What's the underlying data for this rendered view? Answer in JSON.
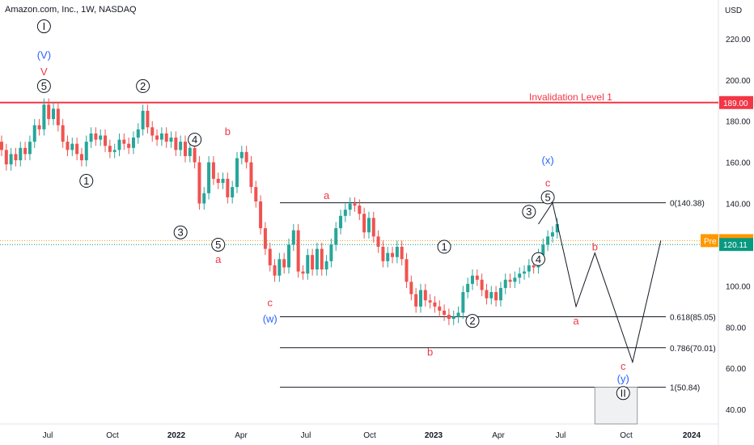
{
  "header": {
    "title": "Amazon.com, Inc., 1W, NASDAQ",
    "currency": "USD"
  },
  "chart_data": {
    "type": "candlestick",
    "title": "Amazon.com, Inc., 1W, NASDAQ",
    "ylabel": "USD",
    "ylim": [
      33,
      238
    ],
    "yticks": [
      "220.00",
      "200.00",
      "180.00",
      "160.00",
      "140.00",
      "120.00",
      "100.00",
      "80.00",
      "60.00",
      "40.00"
    ],
    "xticks": [
      "Jul",
      "Oct",
      "2022",
      "Apr",
      "Jul",
      "Oct",
      "2023",
      "Apr",
      "Jul",
      "Oct",
      "2024"
    ],
    "candles": [
      {
        "o": 170,
        "c": 166
      },
      {
        "o": 166,
        "c": 159
      },
      {
        "o": 159,
        "c": 164
      },
      {
        "o": 164,
        "c": 161
      },
      {
        "o": 161,
        "c": 167
      },
      {
        "o": 167,
        "c": 164
      },
      {
        "o": 164,
        "c": 170
      },
      {
        "o": 170,
        "c": 178
      },
      {
        "o": 178,
        "c": 176
      },
      {
        "o": 176,
        "c": 188
      },
      {
        "o": 188,
        "c": 181
      },
      {
        "o": 181,
        "c": 186
      },
      {
        "o": 186,
        "c": 178
      },
      {
        "o": 178,
        "c": 170
      },
      {
        "o": 170,
        "c": 166
      },
      {
        "o": 166,
        "c": 169
      },
      {
        "o": 169,
        "c": 164
      },
      {
        "o": 164,
        "c": 161
      },
      {
        "o": 161,
        "c": 170
      },
      {
        "o": 170,
        "c": 174
      },
      {
        "o": 174,
        "c": 171
      },
      {
        "o": 171,
        "c": 173
      },
      {
        "o": 173,
        "c": 168
      },
      {
        "o": 168,
        "c": 165
      },
      {
        "o": 165,
        "c": 166
      },
      {
        "o": 166,
        "c": 171
      },
      {
        "o": 171,
        "c": 169
      },
      {
        "o": 169,
        "c": 167
      },
      {
        "o": 167,
        "c": 172
      },
      {
        "o": 172,
        "c": 176
      },
      {
        "o": 176,
        "c": 185
      },
      {
        "o": 185,
        "c": 177
      },
      {
        "o": 177,
        "c": 173
      },
      {
        "o": 173,
        "c": 171
      },
      {
        "o": 171,
        "c": 174
      },
      {
        "o": 174,
        "c": 170
      },
      {
        "o": 170,
        "c": 172
      },
      {
        "o": 172,
        "c": 166
      },
      {
        "o": 166,
        "c": 170
      },
      {
        "o": 170,
        "c": 163
      },
      {
        "o": 163,
        "c": 167
      },
      {
        "o": 167,
        "c": 160
      },
      {
        "o": 160,
        "c": 140
      },
      {
        "o": 140,
        "c": 145
      },
      {
        "o": 145,
        "c": 160
      },
      {
        "o": 160,
        "c": 152
      },
      {
        "o": 152,
        "c": 150
      },
      {
        "o": 150,
        "c": 152
      },
      {
        "o": 152,
        "c": 143
      },
      {
        "o": 143,
        "c": 148
      },
      {
        "o": 148,
        "c": 162
      },
      {
        "o": 162,
        "c": 165
      },
      {
        "o": 165,
        "c": 160
      },
      {
        "o": 160,
        "c": 148
      },
      {
        "o": 148,
        "c": 141
      },
      {
        "o": 141,
        "c": 128
      },
      {
        "o": 128,
        "c": 118
      },
      {
        "o": 118,
        "c": 110
      },
      {
        "o": 110,
        "c": 105
      },
      {
        "o": 105,
        "c": 113
      },
      {
        "o": 113,
        "c": 109
      },
      {
        "o": 109,
        "c": 120
      },
      {
        "o": 120,
        "c": 127
      },
      {
        "o": 127,
        "c": 107
      },
      {
        "o": 107,
        "c": 106
      },
      {
        "o": 106,
        "c": 115
      },
      {
        "o": 115,
        "c": 108
      },
      {
        "o": 108,
        "c": 118
      },
      {
        "o": 118,
        "c": 108
      },
      {
        "o": 108,
        "c": 112
      },
      {
        "o": 112,
        "c": 120
      },
      {
        "o": 120,
        "c": 128
      },
      {
        "o": 128,
        "c": 134
      },
      {
        "o": 134,
        "c": 137
      },
      {
        "o": 137,
        "c": 140
      },
      {
        "o": 140,
        "c": 139
      },
      {
        "o": 139,
        "c": 135
      },
      {
        "o": 135,
        "c": 126
      },
      {
        "o": 126,
        "c": 133
      },
      {
        "o": 133,
        "c": 124
      },
      {
        "o": 124,
        "c": 119
      },
      {
        "o": 119,
        "c": 112
      },
      {
        "o": 112,
        "c": 116
      },
      {
        "o": 116,
        "c": 114
      },
      {
        "o": 114,
        "c": 119
      },
      {
        "o": 119,
        "c": 113
      },
      {
        "o": 113,
        "c": 102
      },
      {
        "o": 102,
        "c": 96
      },
      {
        "o": 96,
        "c": 90
      },
      {
        "o": 90,
        "c": 98
      },
      {
        "o": 98,
        "c": 93
      },
      {
        "o": 93,
        "c": 92
      },
      {
        "o": 92,
        "c": 90
      },
      {
        "o": 90,
        "c": 88
      },
      {
        "o": 88,
        "c": 86
      },
      {
        "o": 86,
        "c": 84
      },
      {
        "o": 84,
        "c": 85
      },
      {
        "o": 85,
        "c": 87
      },
      {
        "o": 87,
        "c": 97
      },
      {
        "o": 97,
        "c": 101
      },
      {
        "o": 101,
        "c": 105
      },
      {
        "o": 105,
        "c": 103
      },
      {
        "o": 103,
        "c": 98
      },
      {
        "o": 98,
        "c": 94
      },
      {
        "o": 94,
        "c": 97
      },
      {
        "o": 97,
        "c": 93
      },
      {
        "o": 93,
        "c": 99
      },
      {
        "o": 99,
        "c": 103
      },
      {
        "o": 103,
        "c": 102
      },
      {
        "o": 102,
        "c": 104
      },
      {
        "o": 104,
        "c": 106
      },
      {
        "o": 106,
        "c": 107
      },
      {
        "o": 107,
        "c": 110
      },
      {
        "o": 110,
        "c": 109
      },
      {
        "o": 109,
        "c": 115
      },
      {
        "o": 115,
        "c": 120
      },
      {
        "o": 120,
        "c": 124
      },
      {
        "o": 124,
        "c": 126
      },
      {
        "o": 126,
        "c": 130
      }
    ],
    "horizontal_lines": [
      {
        "label": "Invalidation Level 1",
        "value": 189.0,
        "color": "#f23645"
      }
    ],
    "fib_levels": [
      {
        "label": "0(140.38)",
        "value": 140.38
      },
      {
        "label": "0.618(85.05)",
        "value": 85.05
      },
      {
        "label": "0.786(70.01)",
        "value": 70.01
      },
      {
        "label": "1(50.84)",
        "value": 50.84
      }
    ],
    "price_tags": [
      {
        "label": "189.00",
        "value": 189.0,
        "bg": "#f23645",
        "prefix": ""
      },
      {
        "label": "122.00",
        "value": 122.0,
        "bg": "#ff9800",
        "prefix": "Pre"
      },
      {
        "label": "120.11",
        "value": 120.11,
        "bg": "#089981",
        "prefix": ""
      }
    ],
    "projection_path": [
      {
        "i": 114,
        "v": 130
      },
      {
        "i": 117,
        "v": 140.38
      },
      {
        "i": 122,
        "v": 90
      },
      {
        "i": 126,
        "v": 116
      },
      {
        "i": 134,
        "v": 63
      },
      {
        "i": 140,
        "v": 122
      }
    ],
    "target_box": {
      "i_start": 126,
      "i_end": 135,
      "top": 50.84,
      "bottom": 33
    },
    "wave_labels": [
      {
        "text": "I",
        "i": 9,
        "v": 226,
        "color": "#131722",
        "circle": true
      },
      {
        "text": "(V)",
        "i": 9,
        "v": 212,
        "color": "#2962ff",
        "circle": false
      },
      {
        "text": "V",
        "i": 9,
        "v": 204,
        "color": "#f23645",
        "circle": false
      },
      {
        "text": "5",
        "i": 9,
        "v": 197,
        "color": "#131722",
        "circle": true
      },
      {
        "text": "2",
        "i": 30,
        "v": 197,
        "color": "#131722",
        "circle": true
      },
      {
        "text": "1",
        "i": 18,
        "v": 151,
        "color": "#131722",
        "circle": true
      },
      {
        "text": "4",
        "i": 41,
        "v": 171,
        "color": "#131722",
        "circle": true
      },
      {
        "text": "3",
        "i": 38,
        "v": 126,
        "color": "#131722",
        "circle": true
      },
      {
        "text": "b",
        "i": 48,
        "v": 175,
        "color": "#f23645",
        "circle": false
      },
      {
        "text": "5",
        "i": 46,
        "v": 120,
        "color": "#131722",
        "circle": true
      },
      {
        "text": "a",
        "i": 46,
        "v": 113,
        "color": "#f23645",
        "circle": false
      },
      {
        "text": "c",
        "i": 57,
        "v": 92,
        "color": "#f23645",
        "circle": false
      },
      {
        "text": "(w)",
        "i": 57,
        "v": 84,
        "color": "#2962ff",
        "circle": false
      },
      {
        "text": "a",
        "i": 69,
        "v": 144,
        "color": "#f23645",
        "circle": false
      },
      {
        "text": "1",
        "i": 94,
        "v": 119,
        "color": "#131722",
        "circle": true
      },
      {
        "text": "2",
        "i": 100,
        "v": 83,
        "color": "#131722",
        "circle": true
      },
      {
        "text": "b",
        "i": 91,
        "v": 68,
        "color": "#f23645",
        "circle": false
      },
      {
        "text": "3",
        "i": 112,
        "v": 136,
        "color": "#131722",
        "circle": true
      },
      {
        "text": "4",
        "i": 114,
        "v": 113,
        "color": "#131722",
        "circle": true
      },
      {
        "text": "(x)",
        "i": 116,
        "v": 161,
        "color": "#2962ff",
        "circle": false
      },
      {
        "text": "c",
        "i": 116,
        "v": 150,
        "color": "#f23645",
        "circle": false
      },
      {
        "text": "5",
        "i": 116,
        "v": 143,
        "color": "#131722",
        "circle": true
      },
      {
        "text": "b",
        "i": 126,
        "v": 119,
        "color": "#f23645",
        "circle": false
      },
      {
        "text": "a",
        "i": 122,
        "v": 83,
        "color": "#f23645",
        "circle": false
      },
      {
        "text": "c",
        "i": 132,
        "v": 61,
        "color": "#f23645",
        "circle": false
      },
      {
        "text": "(y)",
        "i": 132,
        "v": 55,
        "color": "#2962ff",
        "circle": false
      },
      {
        "text": "II",
        "i": 132,
        "v": 48,
        "color": "#131722",
        "circle": true
      }
    ]
  }
}
